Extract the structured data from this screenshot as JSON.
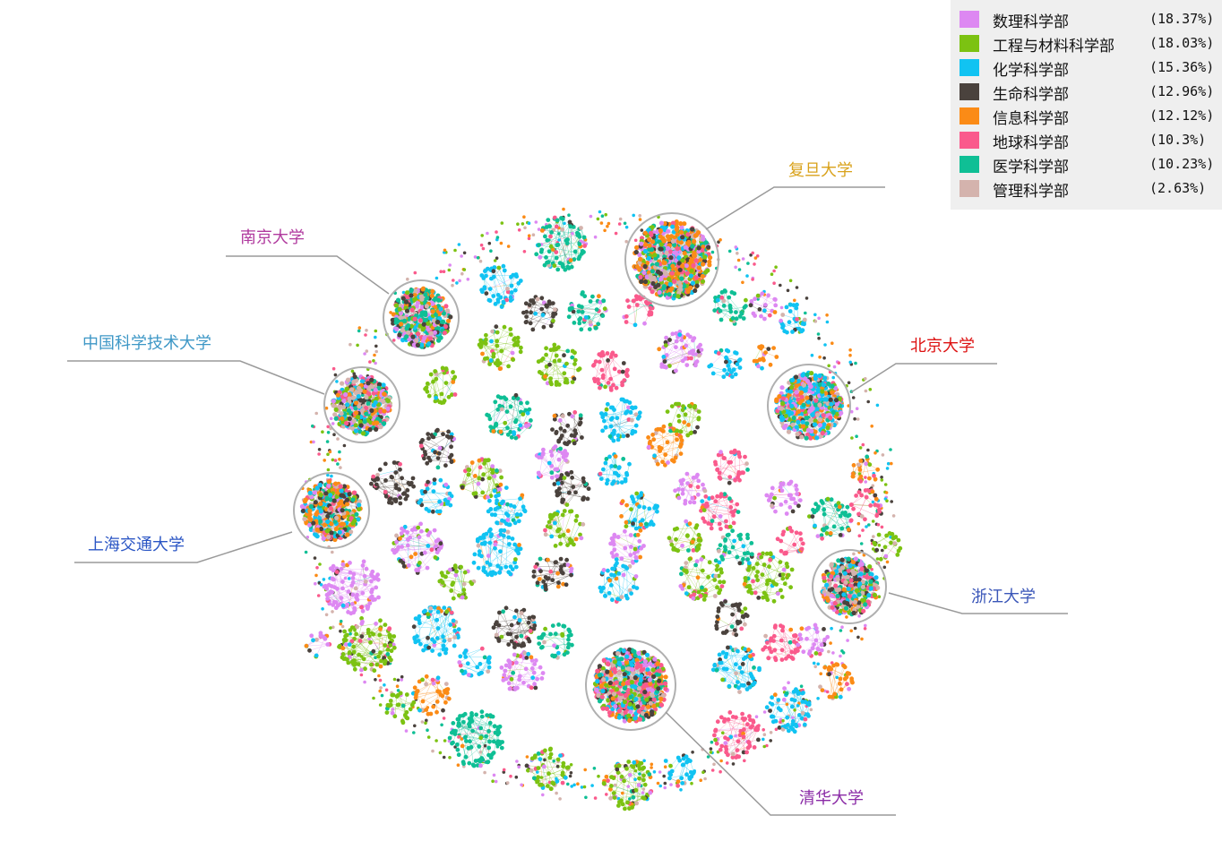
{
  "legend": {
    "items": [
      {
        "name": "数理科学部",
        "pct": "(18.37%)",
        "color": "#dd88f2"
      },
      {
        "name": "工程与材料科学部",
        "pct": "(18.03%)",
        "color": "#7cc212"
      },
      {
        "name": "化学科学部",
        "pct": "(15.36%)",
        "color": "#11c3f2"
      },
      {
        "name": "生命科学部",
        "pct": "(12.96%)",
        "color": "#4a423d"
      },
      {
        "name": "信息科学部",
        "pct": "(12.12%)",
        "color": "#fb8b16"
      },
      {
        "name": "地球科学部",
        "pct": "(10.3%)",
        "color": "#fa5a8c"
      },
      {
        "name": "医学科学部",
        "pct": "(10.23%)",
        "color": "#0fbf95"
      },
      {
        "name": "管理科学部",
        "pct": "(2.63%)",
        "color": "#d4b3ad"
      }
    ]
  },
  "universities": [
    {
      "id": "fudan",
      "label": "复旦大学",
      "color": "#d9a21b"
    },
    {
      "id": "nanjing",
      "label": "南京大学",
      "color": "#b03a9e"
    },
    {
      "id": "ustc",
      "label": "中国科学技术大学",
      "color": "#3d97c6"
    },
    {
      "id": "peking",
      "label": "北京大学",
      "color": "#dd1111"
    },
    {
      "id": "sjtu",
      "label": "上海交通大学",
      "color": "#2a55c4"
    },
    {
      "id": "zhejiang",
      "label": "浙江大学",
      "color": "#3a56b8"
    },
    {
      "id": "tsinghua",
      "label": "清华大学",
      "color": "#8a2aa6"
    }
  ]
}
